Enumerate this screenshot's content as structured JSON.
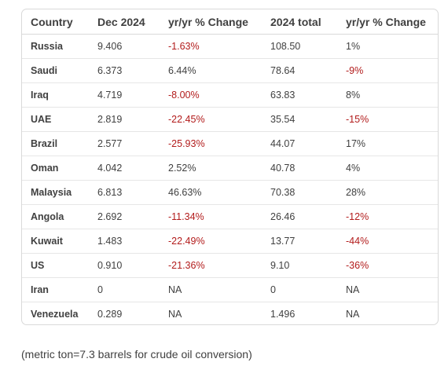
{
  "table": {
    "headers": [
      "Country",
      "Dec 2024",
      "yr/yr % Change",
      "2024 total",
      "yr/yr % Change"
    ],
    "rows": [
      [
        "Russia",
        "9.406",
        "-1.63%",
        "108.50",
        "1%"
      ],
      [
        "Saudi",
        "6.373",
        "6.44%",
        "78.64",
        "-9%"
      ],
      [
        "Iraq",
        "4.719",
        "-8.00%",
        "63.83",
        "8%"
      ],
      [
        "UAE",
        "2.819",
        "-22.45%",
        "35.54",
        "-15%"
      ],
      [
        "Brazil",
        "2.577",
        "-25.93%",
        "44.07",
        "17%"
      ],
      [
        "Oman",
        "4.042",
        "2.52%",
        "40.78",
        "4%"
      ],
      [
        "Malaysia",
        "6.813",
        "46.63%",
        "70.38",
        "28%"
      ],
      [
        "Angola",
        "2.692",
        "-11.34%",
        "26.46",
        "-12%"
      ],
      [
        "Kuwait",
        "1.483",
        "-22.49%",
        "13.77",
        "-44%"
      ],
      [
        "US",
        "0.910",
        "-21.36%",
        "9.10",
        "-36%"
      ],
      [
        "Iran",
        "0",
        "NA",
        "0",
        "NA"
      ],
      [
        "Venezuela",
        "0.289",
        "NA",
        "1.496",
        "NA"
      ]
    ]
  },
  "footnote": "(metric ton=7.3 barrels for crude oil conversion)",
  "colors": {
    "negative": "#b21b1b",
    "text": "#404040",
    "border": "#d9d9d9"
  }
}
